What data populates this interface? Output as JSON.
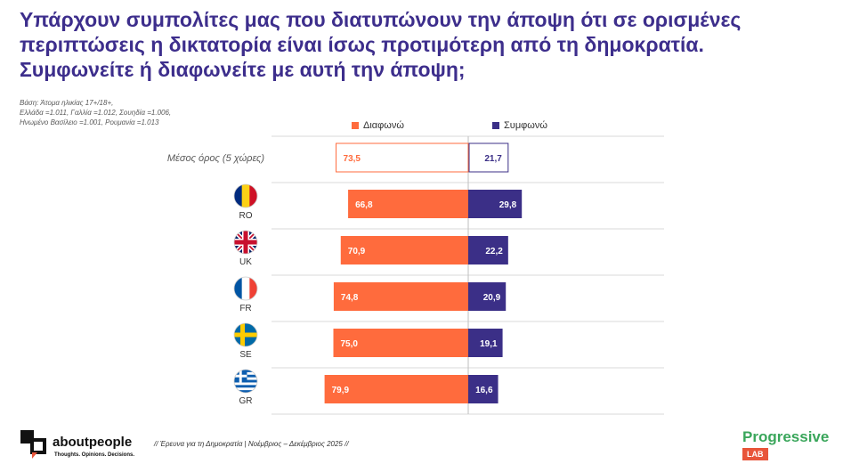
{
  "title_lines": [
    "Υπάρχουν συμπολίτες μας που διατυπώνουν την άποψη ότι σε ορισμένες",
    "περιπτώσεις η δικτατορία είναι ίσως προτιμότερη από τη δημοκρατία.",
    "Συμφωνείτε ή διαφωνείτε με αυτή την άποψη;"
  ],
  "base_lines": [
    "Βάση: Άτομα ηλικίας 17+/18+,",
    "Ελλάδα =1.011, Γαλλία =1.012, Σουηδία =1.006,",
    "Ηνωμένο Βασίλειο =1.001, Ρουμανία =1.013"
  ],
  "colors": {
    "disagree": "#ff6b3d",
    "agree": "#3b2f87",
    "title": "#3d2e8c",
    "grid": "#d9d9d9"
  },
  "chart_data": {
    "type": "bar",
    "orientation": "horizontal-diverging",
    "categories": [
      "Μέσος όρος (5 χώρες)",
      "RO",
      "UK",
      "FR",
      "SE",
      "GR"
    ],
    "flags": [
      "",
      "romania-flag-icon",
      "uk-flag-icon",
      "france-flag-icon",
      "sweden-flag-icon",
      "greece-flag-icon"
    ],
    "series": [
      {
        "name": "Διαφωνώ",
        "values": [
          73.5,
          66.8,
          70.9,
          74.8,
          75.0,
          79.9
        ],
        "labels": [
          "73,5",
          "66,8",
          "70,9",
          "74,8",
          "75,0",
          "79,9"
        ]
      },
      {
        "name": "Συμφωνώ",
        "values": [
          21.7,
          29.8,
          22.2,
          20.9,
          19.1,
          16.6
        ],
        "labels": [
          "21,7",
          "29,8",
          "22,2",
          "20,9",
          "19,1",
          "16,6"
        ]
      }
    ],
    "first_row_outlined": true,
    "grid": true,
    "legend_position": "top"
  },
  "footer": {
    "brand_about": "about",
    "brand_people": "people",
    "brand_tagline": "Thoughts. Opinions. Decisions.",
    "note": "// Έρευνα για τη Δημοκρατία | Νοέμβριος – Δεκέμβριος 2025 //",
    "partner_name": "Progressive",
    "partner_lab": "LAB"
  }
}
